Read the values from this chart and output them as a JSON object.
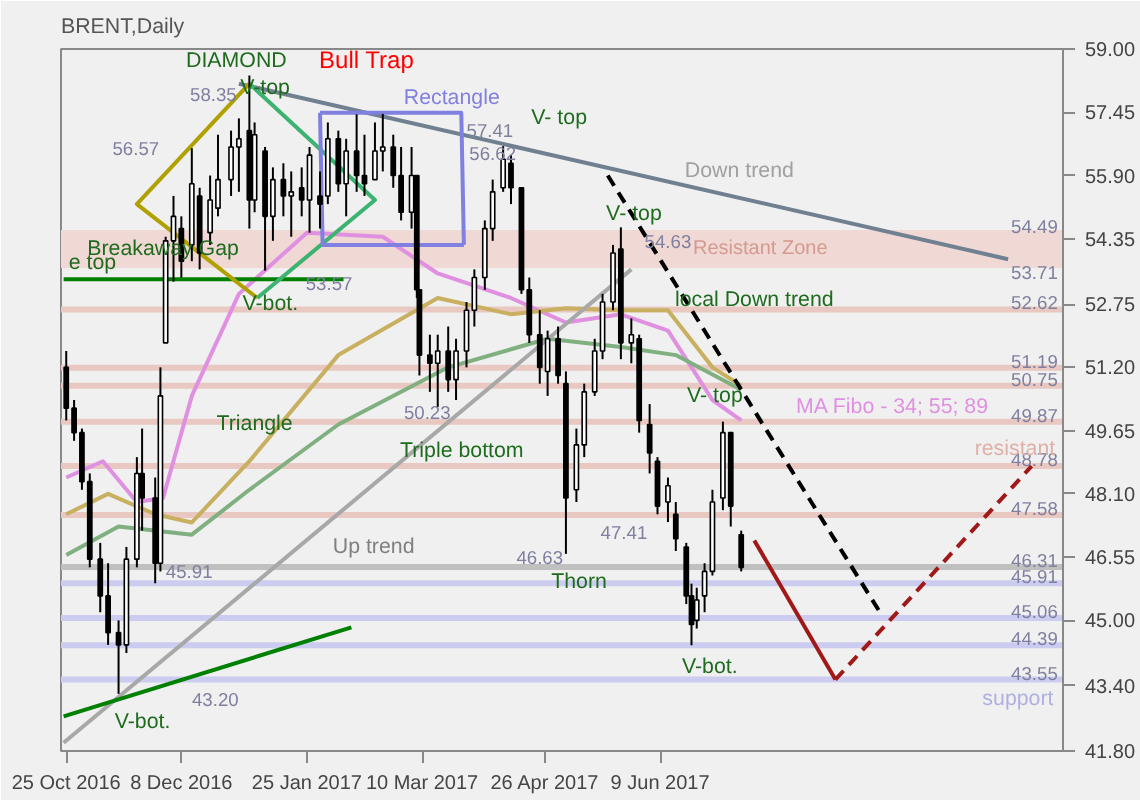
{
  "chart_data": {
    "type": "candlestick",
    "title": "BRENT,Daily",
    "color": "#000000",
    "x": [
      "2016-10-25",
      "2016-10-28",
      "2016-10-31",
      "2016-11-03",
      "2016-11-07",
      "2016-11-10",
      "2016-11-14",
      "2016-11-17",
      "2016-11-21",
      "2016-11-23",
      "2016-11-28",
      "2016-11-30",
      "2016-12-02",
      "2016-12-05",
      "2016-12-08",
      "2016-12-12",
      "2016-12-15",
      "2016-12-19",
      "2016-12-22",
      "2016-12-27",
      "2016-12-30",
      "2017-01-03",
      "2017-01-05",
      "2017-01-09",
      "2017-01-12",
      "2017-01-16",
      "2017-01-19",
      "2017-01-23",
      "2017-01-26",
      "2017-01-30",
      "2017-02-02",
      "2017-02-06",
      "2017-02-09",
      "2017-02-13",
      "2017-02-16",
      "2017-02-20",
      "2017-02-23",
      "2017-02-27",
      "2017-03-02",
      "2017-03-06",
      "2017-03-08",
      "2017-03-09",
      "2017-03-13",
      "2017-03-16",
      "2017-03-20",
      "2017-03-23",
      "2017-03-27",
      "2017-03-30",
      "2017-04-03",
      "2017-04-06",
      "2017-04-10",
      "2017-04-13",
      "2017-04-17",
      "2017-04-20",
      "2017-04-24",
      "2017-04-27",
      "2017-05-01",
      "2017-05-04",
      "2017-05-08",
      "2017-05-11",
      "2017-05-15",
      "2017-05-18",
      "2017-05-22",
      "2017-05-25",
      "2017-05-29",
      "2017-06-01",
      "2017-06-05",
      "2017-06-08",
      "2017-06-12",
      "2017-06-15",
      "2017-06-19",
      "2017-06-21",
      "2017-06-23",
      "2017-06-26",
      "2017-06-29",
      "2017-07-03",
      "2017-07-06",
      "2017-07-10"
    ],
    "ohlc": [
      [
        51.2,
        51.6,
        49.9,
        50.2
      ],
      [
        50.2,
        50.4,
        49.4,
        49.6
      ],
      [
        49.6,
        49.7,
        48.2,
        48.4
      ],
      [
        48.4,
        48.6,
        46.3,
        46.5
      ],
      [
        46.5,
        46.9,
        45.2,
        45.6
      ],
      [
        45.6,
        46.4,
        44.4,
        44.7
      ],
      [
        44.7,
        45.0,
        43.2,
        44.4
      ],
      [
        44.4,
        46.8,
        44.2,
        46.5
      ],
      [
        46.5,
        49.0,
        46.3,
        48.6
      ],
      [
        48.6,
        49.7,
        47.2,
        48.0
      ],
      [
        48.0,
        48.5,
        45.91,
        46.4
      ],
      [
        46.4,
        51.2,
        46.2,
        50.5
      ],
      [
        51.8,
        54.4,
        51.8,
        54.3
      ],
      [
        54.3,
        55.4,
        53.3,
        54.9
      ],
      [
        54.6,
        54.9,
        53.4,
        53.8
      ],
      [
        54.2,
        56.57,
        53.8,
        55.7
      ],
      [
        55.4,
        55.6,
        53.6,
        54.0
      ],
      [
        54.5,
        55.9,
        54.2,
        55.3
      ],
      [
        55.1,
        56.9,
        54.9,
        55.8
      ],
      [
        55.8,
        57.0,
        55.4,
        56.6
      ],
      [
        56.6,
        57.3,
        55.5,
        56.8
      ],
      [
        57.0,
        58.35,
        54.6,
        55.3
      ],
      [
        55.3,
        57.2,
        55.0,
        56.9
      ],
      [
        56.5,
        56.6,
        53.57,
        54.9
      ],
      [
        54.9,
        56.1,
        54.3,
        55.8
      ],
      [
        55.8,
        56.2,
        54.9,
        55.4
      ],
      [
        55.4,
        56.0,
        54.4,
        55.5
      ],
      [
        55.6,
        56.1,
        54.9,
        55.3
      ],
      [
        55.3,
        56.6,
        54.5,
        56.4
      ],
      [
        55.4,
        56.0,
        54.6,
        55.2
      ],
      [
        55.4,
        57.2,
        55.2,
        56.8
      ],
      [
        56.8,
        57.0,
        55.5,
        55.7
      ],
      [
        55.7,
        56.8,
        54.9,
        56.5
      ],
      [
        56.5,
        57.4,
        55.5,
        55.9
      ],
      [
        55.9,
        56.9,
        55.4,
        55.7
      ],
      [
        55.8,
        57.2,
        55.8,
        56.5
      ],
      [
        56.5,
        57.41,
        56.0,
        56.6
      ],
      [
        56.6,
        56.9,
        55.6,
        55.9
      ],
      [
        55.9,
        56.6,
        54.8,
        55.0
      ],
      [
        55.0,
        56.6,
        54.6,
        55.9
      ],
      [
        55.9,
        55.9,
        52.9,
        53.1
      ],
      [
        53.1,
        53.1,
        51.0,
        51.5
      ],
      [
        51.5,
        52.0,
        50.6,
        51.3
      ],
      [
        51.3,
        52.0,
        50.23,
        51.6
      ],
      [
        51.6,
        52.2,
        50.6,
        50.9
      ],
      [
        50.9,
        51.9,
        50.4,
        51.6
      ],
      [
        51.6,
        52.8,
        51.2,
        52.6
      ],
      [
        52.6,
        53.6,
        52.2,
        53.4
      ],
      [
        53.4,
        54.8,
        53.1,
        54.6
      ],
      [
        54.6,
        55.8,
        54.3,
        55.5
      ],
      [
        55.6,
        56.62,
        55.5,
        56.3
      ],
      [
        56.2,
        56.4,
        55.2,
        55.6
      ],
      [
        55.6,
        55.6,
        53.0,
        53.1
      ],
      [
        53.1,
        53.4,
        51.8,
        52.0
      ],
      [
        52.0,
        52.6,
        50.8,
        51.2
      ],
      [
        51.1,
        52.1,
        50.5,
        51.9
      ],
      [
        51.9,
        52.2,
        50.8,
        51.0
      ],
      [
        50.8,
        51.1,
        46.63,
        48.0
      ],
      [
        48.2,
        49.7,
        47.9,
        49.3
      ],
      [
        49.3,
        50.8,
        49.0,
        50.6
      ],
      [
        50.6,
        51.9,
        50.5,
        51.6
      ],
      [
        51.6,
        53.0,
        51.4,
        52.8
      ],
      [
        52.8,
        54.2,
        52.6,
        54.0
      ],
      [
        54.1,
        54.63,
        51.4,
        51.8
      ],
      [
        51.8,
        52.4,
        51.3,
        52.0
      ],
      [
        51.9,
        52.0,
        49.6,
        49.9
      ],
      [
        49.8,
        50.3,
        48.6,
        49.1
      ],
      [
        48.9,
        49.0,
        47.6,
        47.8
      ],
      [
        47.9,
        48.5,
        47.41,
        48.3
      ],
      [
        47.6,
        47.9,
        46.7,
        47.0
      ],
      [
        46.8,
        46.9,
        45.4,
        45.6
      ],
      [
        45.6,
        45.9,
        44.39,
        44.9
      ],
      [
        45.0,
        45.8,
        44.8,
        45.5
      ],
      [
        45.6,
        46.4,
        45.2,
        46.2
      ],
      [
        46.2,
        48.2,
        46.1,
        47.9
      ],
      [
        48.0,
        49.87,
        47.7,
        49.6
      ],
      [
        49.6,
        49.6,
        47.3,
        47.8
      ],
      [
        47.1,
        47.2,
        46.2,
        46.3
      ]
    ],
    "series": [
      {
        "type": "line",
        "color": "#e090e0",
        "x": [
          "2016-10-25",
          "2016-11-08",
          "2016-11-21",
          "2016-12-01",
          "2016-12-12",
          "2016-12-30",
          "2017-01-25",
          "2017-02-23",
          "2017-03-16",
          "2017-04-13",
          "2017-05-04",
          "2017-05-25",
          "2017-06-12",
          "2017-06-29",
          "2017-07-10"
        ],
        "values": [
          48.5,
          48.9,
          47.9,
          48.0,
          50.5,
          53.0,
          54.5,
          54.4,
          53.5,
          52.9,
          52.3,
          52.5,
          52.1,
          50.4,
          49.9
        ]
      },
      {
        "type": "line",
        "color": "#c8b060",
        "x": [
          "2016-10-25",
          "2016-11-10",
          "2016-11-28",
          "2016-12-12",
          "2017-01-03",
          "2017-02-06",
          "2017-03-16",
          "2017-04-13",
          "2017-05-04",
          "2017-05-25",
          "2017-06-12",
          "2017-06-29",
          "2017-07-10"
        ],
        "values": [
          47.6,
          48.1,
          47.6,
          47.4,
          48.9,
          51.5,
          52.9,
          52.5,
          52.65,
          52.6,
          52.6,
          51.2,
          50.75
        ]
      },
      {
        "type": "line",
        "color": "#80b080",
        "x": [
          "2016-10-25",
          "2016-11-14",
          "2016-12-12",
          "2017-01-03",
          "2017-02-06",
          "2017-03-20",
          "2017-04-27",
          "2017-05-25",
          "2017-06-15",
          "2017-07-10"
        ],
        "values": [
          46.6,
          47.3,
          47.1,
          48.2,
          49.8,
          51.2,
          51.9,
          51.7,
          51.5,
          50.65
        ]
      },
      {
        "type": "line",
        "color": "#708090",
        "x": [
          "2016-12-30",
          "2017-10-20"
        ],
        "values": [
          58.15,
          53.85
        ]
      },
      {
        "type": "line",
        "color": "#a8a8a8",
        "x": [
          "2016-10-24",
          "2017-05-29"
        ],
        "values": [
          42.0,
          53.6
        ]
      },
      {
        "type": "line",
        "color": "#008000",
        "x": [
          "2016-10-24",
          "2017-02-11"
        ],
        "values": [
          42.65,
          44.83
        ]
      },
      {
        "type": "line",
        "color": "#008000",
        "x": [
          "2016-10-24",
          "2017-02-08"
        ],
        "values": [
          53.36,
          53.36
        ]
      },
      {
        "type": "line",
        "color": "#b0a000",
        "x": [
          "2017-01-03",
          "2016-11-21",
          "2017-01-06"
        ],
        "values": [
          58.15,
          55.2,
          52.9
        ]
      },
      {
        "type": "line",
        "color": "#3cb371",
        "x": [
          "2017-01-03",
          "2017-02-20",
          "2017-01-06"
        ],
        "values": [
          58.15,
          55.3,
          52.9
        ]
      },
      {
        "type": "line",
        "color": "#8080e0",
        "x": [
          "2017-01-30",
          "2017-03-25",
          "2017-03-26"
        ],
        "values": [
          57.44,
          57.44,
          54.2
        ]
      },
      {
        "type": "line",
        "color": "#8080e0",
        "x": [
          "2017-03-26",
          "2017-01-31",
          "2017-01-30"
        ],
        "values": [
          54.2,
          54.2,
          57.44
        ]
      },
      {
        "type": "line",
        "color": "#000000",
        "line_style": "dashed",
        "x": [
          "2017-05-20",
          "2017-09-02"
        ],
        "values": [
          55.9,
          45.1
        ]
      },
      {
        "type": "line",
        "color": "#a01818",
        "x": [
          "2017-07-15",
          "2017-08-15"
        ],
        "values": [
          46.96,
          43.55
        ]
      },
      {
        "type": "line",
        "color": "#a01818",
        "line_style": "dashed",
        "x": [
          "2017-08-15",
          "2017-10-29"
        ],
        "values": [
          43.55,
          48.78
        ]
      }
    ],
    "bands": [
      {
        "axis": "y",
        "from": 53.71,
        "to": 54.49,
        "label": "Resistant Zone",
        "color": "#f0d8d4"
      }
    ],
    "ref_lines": [
      {
        "axis": "y",
        "value": 54.49,
        "label": "54.49",
        "color": "#f0d8d4"
      },
      {
        "axis": "y",
        "value": 53.71,
        "label": "53.71",
        "color": "#f0d8d4"
      },
      {
        "axis": "y",
        "value": 52.62,
        "label": "52.62",
        "color": "#e8c8c0"
      },
      {
        "axis": "y",
        "value": 51.19,
        "label": "51.19",
        "color": "#e8c8c0"
      },
      {
        "axis": "y",
        "value": 50.75,
        "label": "50.75",
        "color": "#e8c8c0"
      },
      {
        "axis": "y",
        "value": 49.87,
        "label": "49.87",
        "color": "#e8c8c0"
      },
      {
        "axis": "y",
        "value": 48.78,
        "label": "48.78",
        "color": "#e8c8c0"
      },
      {
        "axis": "y",
        "value": 47.58,
        "label": "47.58",
        "color": "#e8c8c0"
      },
      {
        "axis": "y",
        "value": 46.31,
        "label": "46.31",
        "color": "#c0c0c0"
      },
      {
        "axis": "y",
        "value": 45.91,
        "label": "45.91",
        "color": "#ccccf0"
      },
      {
        "axis": "y",
        "value": 45.06,
        "label": "45.06",
        "color": "#ccccf0"
      },
      {
        "axis": "y",
        "value": 44.39,
        "label": "44.39",
        "color": "#ccccf0"
      },
      {
        "axis": "y",
        "value": 43.55,
        "label": "43.55",
        "color": "#ccccf0"
      }
    ],
    "annotations": [
      "DIAMOND",
      "Bull Trap",
      {
        "text": "V-top",
        "x": "2017-01-09",
        "y": 58.05
      },
      {
        "text": "58.35",
        "x": "2017-01-03",
        "y": 58.35
      },
      "Rectangle",
      "57.41",
      {
        "text": "V- top",
        "x": "2017-04-10",
        "y": 56.62
      },
      {
        "text": "56.62",
        "x": "2017-04-06",
        "y": 56.45
      },
      {
        "text": "56.57",
        "x": "2016-12-12",
        "y": 56.57
      },
      {
        "text": "Breakaway Gap",
        "x": "2016-12-01",
        "y": 54.1
      },
      {
        "text": "e top",
        "x": "2016-11-04",
        "y": 53.75
      },
      {
        "text": "V-bot.",
        "x": "2017-01-11",
        "y": 52.75
      },
      {
        "text": "53.57",
        "x": "2017-01-09",
        "y": 53.57
      },
      {
        "text": "V- top",
        "x": "2017-05-30",
        "y": 54.95
      },
      {
        "text": "54.63",
        "x": "2017-06-12",
        "y": 54.3
      },
      "Down trend",
      {
        "text": "local Down trend",
        "x": "2017-07-15",
        "y": 52.85
      },
      {
        "text": "Triangle",
        "x": "2017-01-05",
        "y": 49.8
      },
      {
        "text": "50.23",
        "x": "2017-03-12",
        "y": 50.1
      },
      "Triple bottom",
      {
        "text": "V- top",
        "x": "2017-07-03",
        "y": 49.87
      },
      "MA Fibo - 34; 55; 89",
      "resistant",
      "Up trend",
      {
        "text": "46.63",
        "x": "2017-04-24",
        "y": 46.55
      },
      {
        "text": "Thorn",
        "x": "2017-05-09",
        "y": 45.95
      },
      {
        "text": "47.41",
        "x": "2017-06-12",
        "y": 47.41
      },
      {
        "text": "45.91",
        "x": "2016-12-11",
        "y": 46.2
      },
      "43.20",
      {
        "text": "V-bot.",
        "x": "2016-11-14",
        "y": 43.2
      },
      {
        "text": "V-bot.",
        "x": "2017-06-28",
        "y": 43.85
      },
      "support"
    ],
    "xlim": [
      "2016-10-23",
      "2017-11-10"
    ],
    "xticks": [
      {
        "value": "2016-10-25",
        "label": "25 Oct 2016"
      },
      {
        "value": "2016-12-08",
        "label": "8 Dec 2016"
      },
      {
        "value": "2017-01-25",
        "label": "25 Jan 2017"
      },
      {
        "value": "2017-03-10",
        "label": "10 Mar 2017"
      },
      {
        "value": "2017-04-26",
        "label": "26 Apr 2017"
      },
      {
        "value": "2017-06-09",
        "label": "9 Jun 2017"
      }
    ],
    "ylim": [
      41.8,
      59.0
    ],
    "yticks": [
      {
        "value": 59.0,
        "label": "59.00"
      },
      {
        "value": 57.45,
        "label": "57.45"
      },
      {
        "value": 55.9,
        "label": "55.90"
      },
      {
        "value": 54.35,
        "label": "54.35"
      },
      {
        "value": 52.75,
        "label": "52.75"
      },
      {
        "value": 51.2,
        "label": "51.20"
      },
      {
        "value": 49.65,
        "label": "49.65"
      },
      {
        "value": 48.1,
        "label": "48.10"
      },
      {
        "value": 46.55,
        "label": "46.55"
      },
      {
        "value": 45.0,
        "label": "45.00"
      },
      {
        "value": 43.4,
        "label": "43.40"
      },
      {
        "value": 41.8,
        "label": "41.80"
      }
    ],
    "grid": false
  }
}
